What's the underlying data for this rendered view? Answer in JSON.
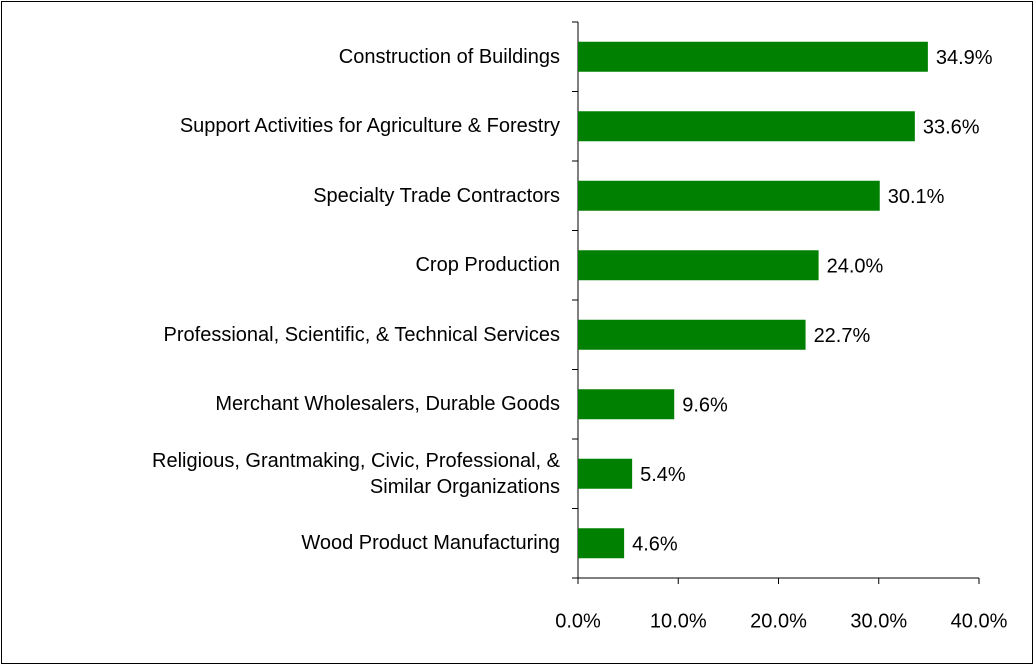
{
  "chart_data": {
    "type": "bar",
    "orientation": "horizontal",
    "categories": [
      "Construction of Buildings",
      "Support Activities for Agriculture & Forestry",
      "Specialty Trade Contractors",
      "Crop Production",
      "Professional, Scientific, & Technical Services",
      "Merchant Wholesalers, Durable Goods",
      "Religious, Grantmaking, Civic, Professional, & Similar Organizations",
      "Wood Product Manufacturing"
    ],
    "values": [
      34.9,
      33.6,
      30.1,
      24.0,
      22.7,
      9.6,
      5.4,
      4.6
    ],
    "value_labels": [
      "34.9%",
      "33.6%",
      "30.1%",
      "24.0%",
      "22.7%",
      "9.6%",
      "5.4%",
      "4.6%"
    ],
    "color": "#008000",
    "xlim": [
      0,
      40
    ],
    "xticks": [
      {
        "value": 0,
        "label": "0.0%"
      },
      {
        "value": 10,
        "label": "10.0%"
      },
      {
        "value": 20,
        "label": "20.0%"
      },
      {
        "value": 30,
        "label": "30.0%"
      },
      {
        "value": 40,
        "label": "40.0%"
      }
    ],
    "grid": false
  }
}
